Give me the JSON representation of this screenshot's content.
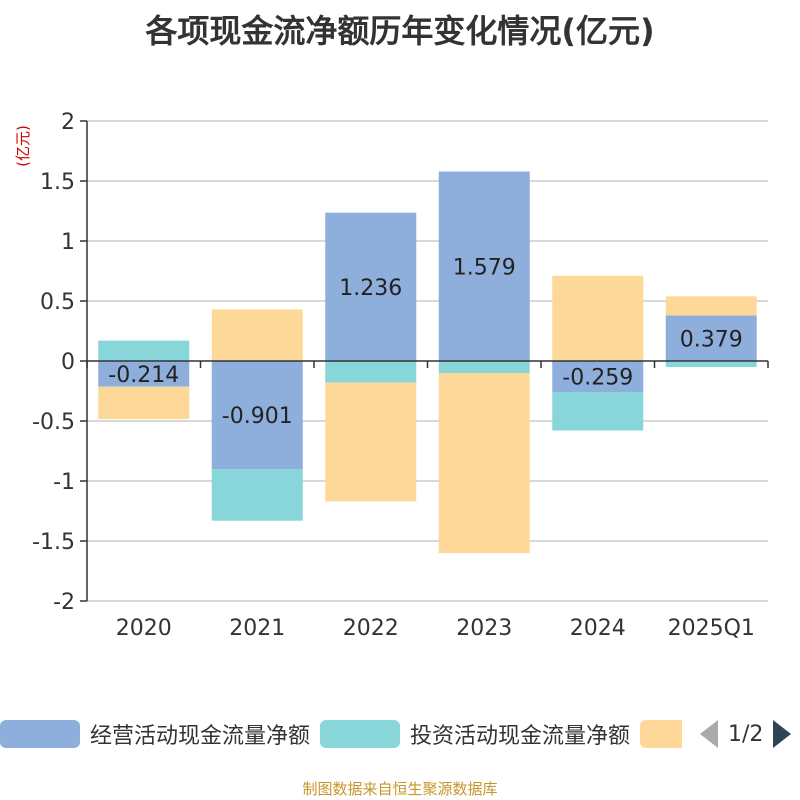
{
  "title": "各项现金流净额历年变化情况(亿元)",
  "source": "制图数据来自恒生聚源数据库",
  "legend": {
    "items": [
      {
        "label": "经营活动现金流量净额",
        "color": "#8eaedc"
      },
      {
        "label": "投资活动现金流量净额",
        "color": "#88d6d9"
      },
      {
        "label": "",
        "color": "#fdd899"
      }
    ],
    "page": "1/2"
  },
  "chart_data": {
    "type": "bar",
    "stacked": true,
    "categories": [
      "2020",
      "2021",
      "2022",
      "2023",
      "2024",
      "2025Q1"
    ],
    "ylabel": "(亿元)",
    "ylim": [
      -2,
      2
    ],
    "yticks": [
      2,
      1.5,
      1,
      0.5,
      0,
      -0.5,
      -1,
      -1.5,
      -2
    ],
    "grid": true,
    "series": [
      {
        "name": "经营活动现金流量净额",
        "color": "#8eaedc",
        "values": [
          -0.214,
          -0.901,
          1.236,
          1.579,
          -0.259,
          0.379
        ],
        "labels": [
          "-0.214",
          "-0.901",
          "1.236",
          "1.579",
          "-0.259",
          "0.379"
        ]
      },
      {
        "name": "投资活动现金流量净额",
        "color": "#88d6d9",
        "values": [
          0.17,
          -0.43,
          -0.18,
          -0.1,
          -0.32,
          -0.05
        ]
      },
      {
        "name": "",
        "color": "#fdd899",
        "values": [
          -0.27,
          0.43,
          -0.99,
          -1.5,
          0.71,
          0.16
        ]
      }
    ]
  }
}
